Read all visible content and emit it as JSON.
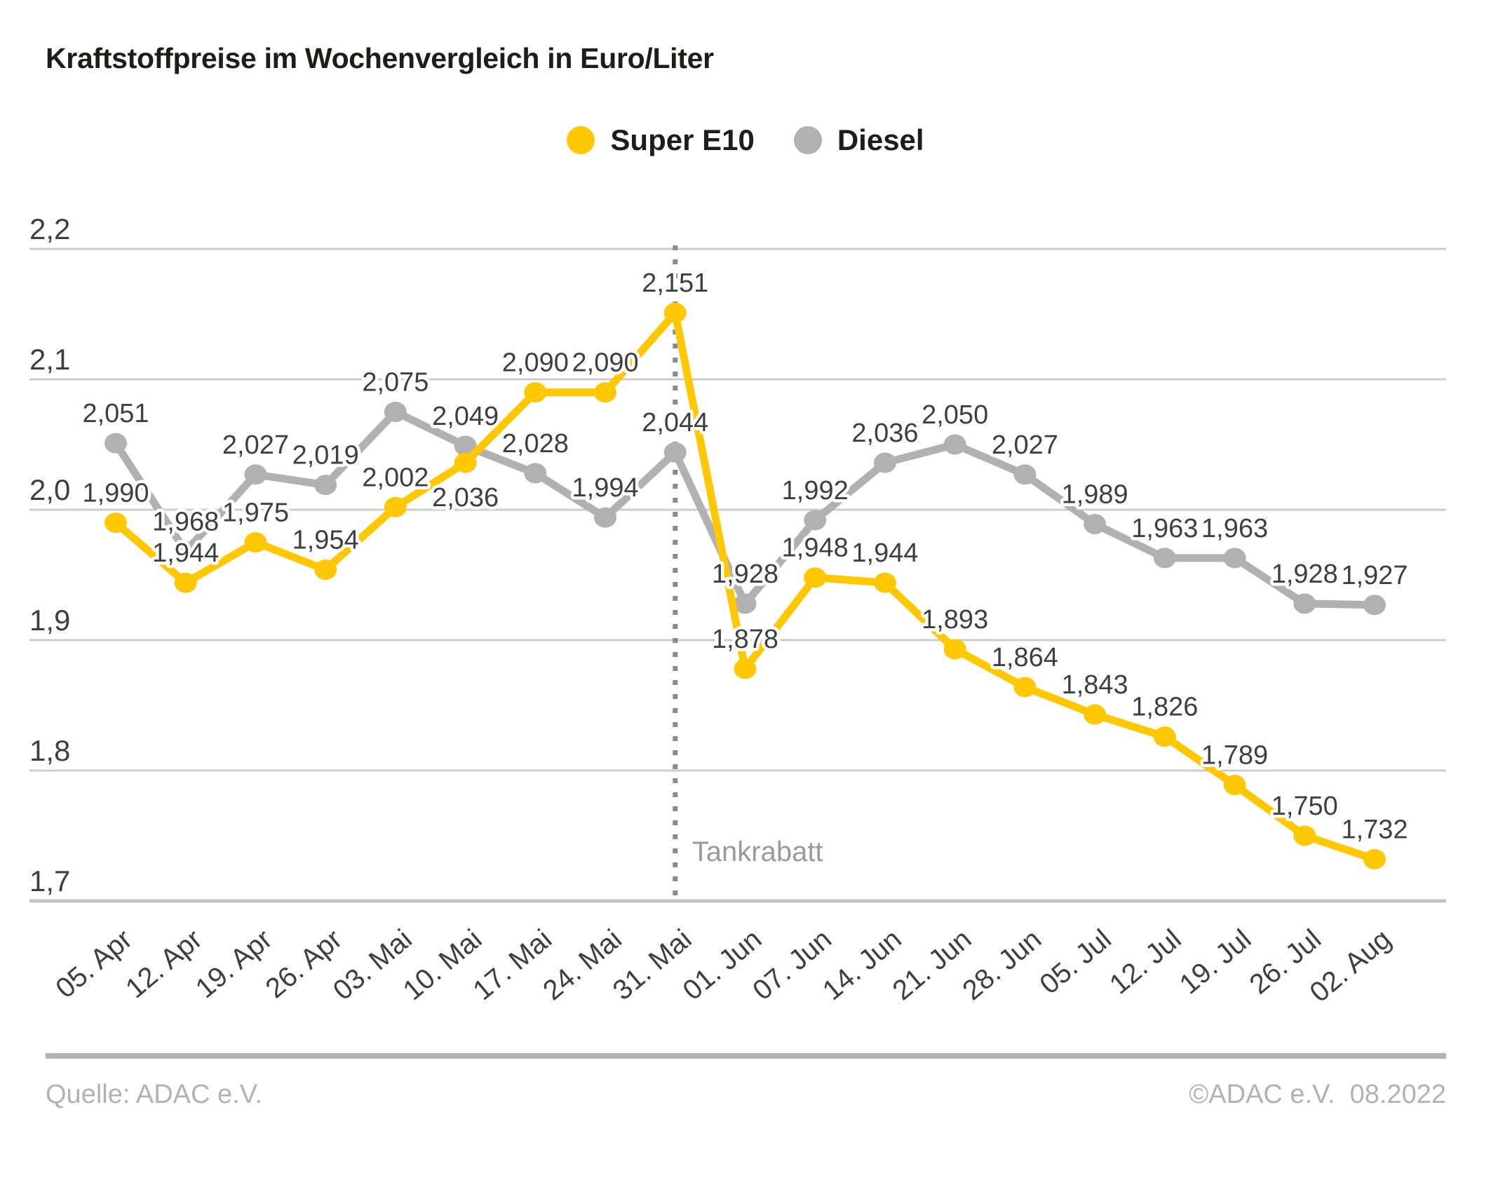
{
  "title": "Kraftstoffpreise im Wochenvergleich in Euro/Liter",
  "legend": {
    "items": [
      {
        "label": "Super E10",
        "color": "#FFC803"
      },
      {
        "label": "Diesel",
        "color": "#B1B1B1"
      }
    ]
  },
  "chart_data": {
    "type": "line",
    "categories": [
      "05. Apr",
      "12. Apr",
      "19. Apr",
      "26. Apr",
      "03. Mai",
      "10. Mai",
      "17. Mai",
      "24. Mai",
      "31. Mai",
      "01. Jun",
      "07. Jun",
      "14. Jun",
      "21. Jun",
      "28. Jun",
      "05. Jul",
      "12. Jul",
      "19. Jul",
      "26. Jul",
      "02. Aug"
    ],
    "series": [
      {
        "name": "Super E10",
        "color": "#FFC803",
        "values": [
          1.99,
          1.944,
          1.975,
          1.954,
          2.002,
          2.036,
          2.09,
          2.09,
          2.151,
          1.878,
          1.948,
          1.944,
          1.893,
          1.864,
          1.843,
          1.826,
          1.789,
          1.75,
          1.732
        ]
      },
      {
        "name": "Diesel",
        "color": "#B1B1B1",
        "values": [
          2.051,
          1.968,
          2.027,
          2.019,
          2.075,
          2.049,
          2.028,
          1.994,
          2.044,
          1.928,
          1.992,
          2.036,
          2.05,
          2.027,
          1.989,
          1.963,
          1.963,
          1.928,
          1.927
        ]
      }
    ],
    "ylim": [
      1.7,
      2.2
    ],
    "y_ticks": [
      2.2,
      2.1,
      2.0,
      1.9,
      1.8,
      1.7
    ],
    "decimal_separator": ",",
    "grid": "horizontal",
    "legend_position": "top-center",
    "x_label_rotation_deg": -40,
    "annotation": {
      "type": "vertical-dotted-line",
      "category": "31. Mai",
      "label": "Tankrabatt",
      "line_color": "#8A8A8A",
      "label_color": "#9A9A9A"
    },
    "label_position_overrides": [
      {
        "series": "Super E10",
        "index": 5,
        "position": "below"
      }
    ],
    "colors": {
      "grid_line": "#CDCDCD",
      "axis_line": "#C4C4C4",
      "data_label": "#3F3F3F",
      "tick_label": "#3F3F3F",
      "label_halo": "#FFFFFF"
    }
  },
  "footer": {
    "source": "Quelle: ADAC e.V.",
    "copyright": "©ADAC e.V.  08.2022"
  }
}
